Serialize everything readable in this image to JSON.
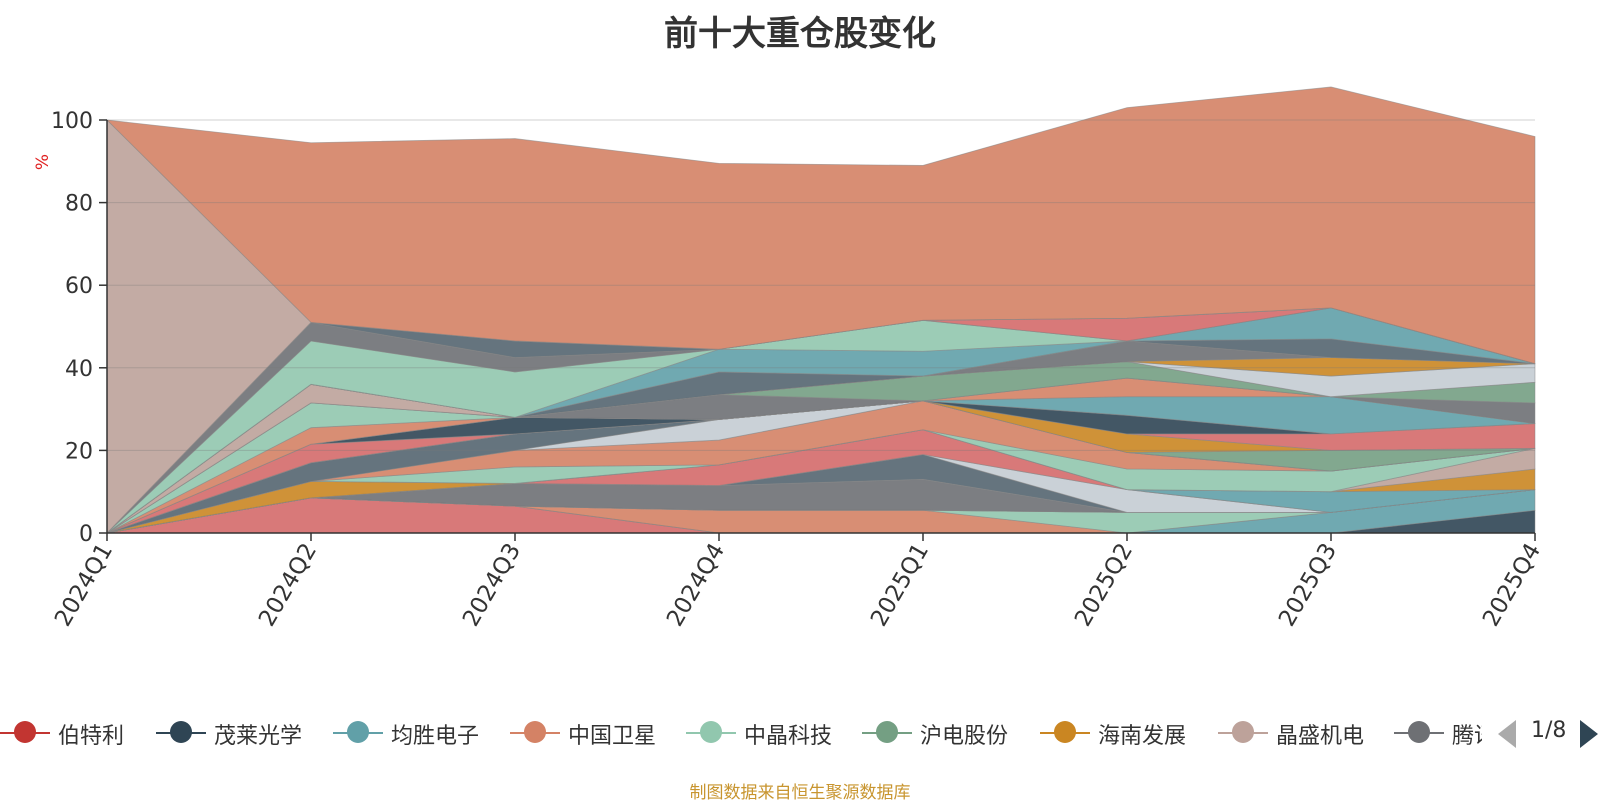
{
  "title": "前十大重仓股变化",
  "source": "制图数据来自恒生聚源数据库",
  "legend_page": "1/8",
  "chart_data": {
    "type": "area",
    "stacked": true,
    "percent": true,
    "title": "前十大重仓股变化",
    "ylabel": "%",
    "ylim": [
      0,
      100
    ],
    "yticks": [
      "0",
      "20",
      "40",
      "60",
      "80",
      "100"
    ],
    "categories": [
      "2024Q1",
      "2024Q2",
      "2024Q3",
      "2024Q4",
      "2025Q1",
      "2025Q2",
      "2025Q3",
      "2025Q4"
    ],
    "grid": true,
    "legend_position": "bottom",
    "series": [
      {
        "name": "伯特利",
        "color": "#d46a6a",
        "values": [
          0,
          8.5,
          6.5,
          0,
          0,
          0,
          0,
          0
        ]
      },
      {
        "name": "茂莱光学",
        "color": "#2f4554",
        "values": [
          0,
          0,
          0,
          0,
          0,
          0,
          0,
          5.5
        ]
      },
      {
        "name": "均胜电子",
        "color": "#61a0a8",
        "values": [
          0,
          0,
          0,
          0,
          0,
          0,
          5,
          5
        ]
      },
      {
        "name": "中国卫星",
        "color": "#d48265",
        "values": [
          0,
          0,
          0,
          5.5,
          5.5,
          0,
          0,
          0
        ]
      },
      {
        "name": "中晶科技",
        "color": "#91c7ae",
        "values": [
          0,
          0,
          0,
          0,
          0,
          5,
          0,
          0
        ]
      },
      {
        "name": "沪电股份",
        "color": "#749f83",
        "values": [
          0,
          0,
          0,
          0,
          0,
          0,
          0,
          0
        ]
      },
      {
        "name": "海南发展",
        "color": "#ca8622",
        "values": [
          0,
          0,
          0,
          0,
          0,
          0,
          0,
          0
        ]
      },
      {
        "name": "晶盛机电",
        "color": "#bda29a",
        "values": [
          0,
          0,
          0,
          0,
          0,
          0,
          0,
          0
        ]
      },
      {
        "name": "腾讯",
        "color": "#6e7074",
        "values": [
          0,
          0,
          5.5,
          6,
          7.5,
          0,
          0,
          0
        ]
      },
      {
        "name": "",
        "color": "#546570",
        "values": [
          0,
          0,
          0,
          0,
          6,
          0,
          0,
          0
        ]
      },
      {
        "name": "",
        "color": "#c4ccd3",
        "values": [
          0,
          0,
          0,
          0,
          0,
          5.5,
          0,
          0
        ]
      },
      {
        "name": "",
        "color": "#d46a6a",
        "values": [
          0,
          0,
          0,
          5,
          6,
          0,
          0,
          0
        ]
      },
      {
        "name": "",
        "color": "#61a0a8",
        "values": [
          0,
          0,
          0,
          0,
          0,
          0,
          5,
          0
        ]
      },
      {
        "name": "",
        "color": "#ca8622",
        "values": [
          0,
          4,
          0,
          0,
          0,
          0,
          0,
          5
        ]
      },
      {
        "name": "",
        "color": "#bda29a",
        "values": [
          0,
          0,
          0,
          0,
          0,
          0,
          0,
          5
        ]
      },
      {
        "name": "",
        "color": "#91c7ae",
        "values": [
          0,
          0,
          4,
          0,
          0,
          5,
          5,
          0
        ]
      },
      {
        "name": "",
        "color": "#d48265",
        "values": [
          0,
          0,
          4,
          6,
          7,
          4,
          0,
          0
        ]
      },
      {
        "name": "",
        "color": "#c4ccd3",
        "values": [
          0,
          0,
          0,
          5,
          0,
          0,
          0,
          0
        ]
      },
      {
        "name": "",
        "color": "#546570",
        "values": [
          0,
          4.5,
          4,
          0,
          0,
          0,
          0,
          0
        ]
      },
      {
        "name": "",
        "color": "#749f83",
        "values": [
          0,
          0,
          0,
          0,
          0,
          0,
          5,
          0
        ]
      },
      {
        "name": "",
        "color": "#ca8622",
        "values": [
          0,
          0,
          0,
          0,
          0,
          4.5,
          0,
          0
        ]
      },
      {
        "name": "",
        "color": "#d46a6a",
        "values": [
          0,
          4.5,
          0,
          0,
          0,
          0,
          4,
          6
        ]
      },
      {
        "name": "",
        "color": "#2f4554",
        "values": [
          0,
          0,
          4,
          0,
          0,
          4.5,
          0,
          0
        ]
      },
      {
        "name": "",
        "color": "#61a0a8",
        "values": [
          0,
          0,
          0,
          0,
          0,
          4.5,
          9,
          0
        ]
      },
      {
        "name": "",
        "color": "#d48265",
        "values": [
          0,
          4,
          0,
          0,
          0,
          4.5,
          0,
          0
        ]
      },
      {
        "name": "",
        "color": "#91c7ae",
        "values": [
          0,
          6,
          0,
          0,
          0,
          0,
          0,
          0
        ]
      },
      {
        "name": "",
        "color": "#6e7074",
        "values": [
          0,
          0,
          0,
          6,
          0,
          0,
          0,
          5
        ]
      },
      {
        "name": "",
        "color": "#749f83",
        "values": [
          0,
          0,
          0,
          0,
          6,
          4,
          0,
          5
        ]
      },
      {
        "name": "",
        "color": "#bda29a",
        "values": [
          0,
          4.5,
          0,
          0,
          0,
          0,
          0,
          0
        ]
      },
      {
        "name": "",
        "color": "#c4ccd3",
        "values": [
          0,
          0,
          0,
          0,
          0,
          0,
          5,
          4.5
        ]
      },
      {
        "name": "",
        "color": "#ca8622",
        "values": [
          0,
          0,
          0,
          0,
          0,
          0,
          4.5,
          0
        ]
      },
      {
        "name": "",
        "color": "#6e7074",
        "values": [
          0,
          0,
          0,
          0,
          0,
          5,
          0,
          0
        ]
      },
      {
        "name": "",
        "color": "#d46a6a",
        "values": [
          0,
          0,
          0,
          0,
          0,
          0,
          0,
          0
        ]
      },
      {
        "name": "",
        "color": "#546570",
        "values": [
          0,
          0,
          0,
          5.5,
          0,
          0,
          4.5,
          0
        ]
      },
      {
        "name": "",
        "color": "#61a0a8",
        "values": [
          0,
          0,
          0,
          5.5,
          6,
          0,
          7.5,
          0
        ]
      },
      {
        "name": "",
        "color": "#91c7ae",
        "values": [
          0,
          10.5,
          11,
          0,
          7.5,
          0,
          0,
          0
        ]
      },
      {
        "name": "",
        "color": "#6e7074",
        "values": [
          0,
          4.5,
          3.5,
          0,
          0,
          0,
          0,
          0
        ]
      },
      {
        "name": "",
        "color": "#d46a6a",
        "values": [
          0,
          0,
          0,
          0,
          0,
          5.5,
          0,
          0
        ]
      },
      {
        "name": "",
        "color": "#546570",
        "values": [
          0,
          0,
          4,
          0,
          0,
          0,
          0,
          0
        ]
      },
      {
        "name": "",
        "color": "#bda29a",
        "values": [
          100,
          0,
          0,
          0,
          0,
          0,
          0,
          0
        ]
      },
      {
        "name": "",
        "color": "#d48265",
        "values": [
          0,
          43.5,
          49,
          45,
          37.5,
          51,
          53.5,
          55
        ]
      }
    ]
  },
  "legend": [
    {
      "label": "伯特利",
      "color": "#c23531",
      "icon": "circle"
    },
    {
      "label": "茂莱光学",
      "color": "#2f4554",
      "icon": "circle"
    },
    {
      "label": "均胜电子",
      "color": "#61a0a8",
      "icon": "circle"
    },
    {
      "label": "中国卫星",
      "color": "#d48265",
      "icon": "circle"
    },
    {
      "label": "中晶科技",
      "color": "#91c7ae",
      "icon": "circle"
    },
    {
      "label": "沪电股份",
      "color": "#749f83",
      "icon": "circle"
    },
    {
      "label": "海南发展",
      "color": "#ca8622",
      "icon": "circle"
    },
    {
      "label": "晶盛机电",
      "color": "#bda29a",
      "icon": "circle"
    },
    {
      "label": "腾讯",
      "color": "#6e7074",
      "icon": "circle"
    }
  ]
}
